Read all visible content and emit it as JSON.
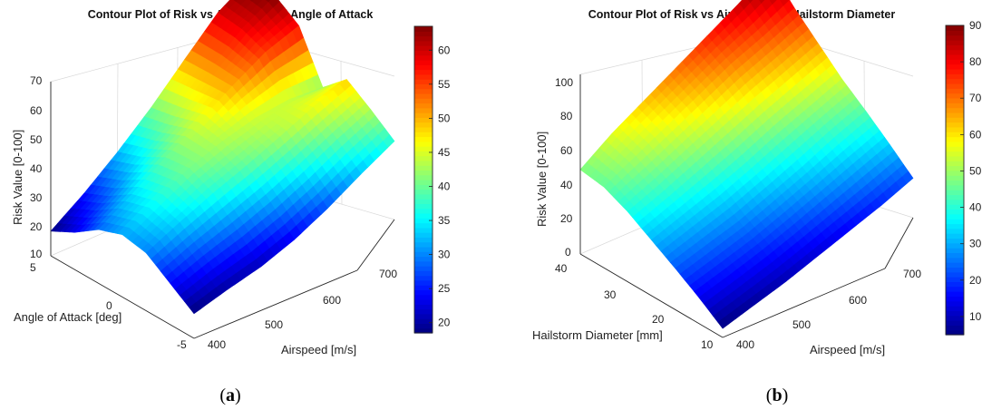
{
  "captions": [
    "a",
    "b"
  ],
  "colors": {
    "colormap": "jet",
    "axis": "#262626",
    "grid": "#d9d9d9"
  },
  "chart_data": [
    {
      "type": "surface",
      "title": "Contour Plot of Risk vs Airspeed and Angle of Attack",
      "xlabel": "Airspeed [m/s]",
      "ylabel": "Angle of Attack [deg]",
      "zlabel": "Risk Value [0-100]",
      "xlim": [
        380,
        720
      ],
      "ylim": [
        -5,
        5
      ],
      "zlim": [
        10,
        70
      ],
      "xticks": [
        "400",
        "500",
        "600",
        "700"
      ],
      "yticks": [
        "5",
        "0",
        "-5"
      ],
      "zticks": [
        "10",
        "20",
        "30",
        "40",
        "50",
        "60",
        "70"
      ],
      "colorbar": {
        "ticks": [
          "20",
          "25",
          "30",
          "35",
          "40",
          "45",
          "50",
          "55",
          "60"
        ],
        "range": [
          18.5,
          63.5
        ]
      },
      "grid": true,
      "x": [
        380,
        437,
        493,
        550,
        607,
        663,
        720
      ],
      "y": [
        -5,
        -3.33,
        -1.67,
        0,
        1.67,
        3.33,
        5
      ],
      "z": [
        [
          18.5,
          20,
          21,
          23.5,
          27.5,
          32.5,
          37
        ],
        [
          24.2,
          26.9,
          28.9,
          31.7,
          35.3,
          39.6,
          43.2
        ],
        [
          29.9,
          33.6,
          36.8,
          39.5,
          42.6,
          46.0,
          48.8
        ],
        [
          31.5,
          36.2,
          40.7,
          43.2,
          44.5,
          44.0,
          41.3
        ],
        [
          28.5,
          33.8,
          39.7,
          44.9,
          50.5,
          55.5,
          57.8
        ],
        [
          22.8,
          28.4,
          35.1,
          42.2,
          50.5,
          58.7,
          63.4
        ],
        [
          18.5,
          24.7,
          32.1,
          40.5,
          50.2,
          59.6,
          65
        ]
      ]
    },
    {
      "type": "surface",
      "title": "Contour Plot of Risk vs Airspeed and Hailstorm Diameter",
      "xlabel": "Airspeed [m/s]",
      "ylabel": "Hailstorm Diameter [mm]",
      "zlabel": "Risk Value [0-100]",
      "xlim": [
        380,
        720
      ],
      "ylim": [
        10,
        40
      ],
      "zlim": [
        0,
        100
      ],
      "xticks": [
        "400",
        "500",
        "600",
        "700"
      ],
      "yticks": [
        "40",
        "30",
        "20",
        "10"
      ],
      "zticks": [
        "0",
        "20",
        "40",
        "60",
        "80",
        "100"
      ],
      "colorbar": {
        "ticks": [
          "10",
          "20",
          "30",
          "40",
          "50",
          "60",
          "70",
          "80",
          "90"
        ],
        "range": [
          5,
          90
        ]
      },
      "grid": true,
      "x": [
        380,
        437,
        493,
        550,
        607,
        663,
        720
      ],
      "y": [
        10,
        15,
        20,
        25,
        30,
        35,
        40
      ],
      "z": [
        [
          5,
          7,
          9,
          12,
          15,
          18,
          22
        ],
        [
          14.5,
          16.3,
          18.6,
          21.9,
          25.8,
          29.6,
          33.3
        ],
        [
          23,
          25,
          27,
          31,
          35,
          40,
          44
        ],
        [
          31,
          34,
          37,
          41,
          46,
          50,
          54
        ],
        [
          39,
          43,
          48,
          53,
          58,
          62,
          66
        ],
        [
          45,
          51,
          57,
          63,
          69,
          73,
          78
        ],
        [
          47,
          56,
          63,
          70,
          77,
          84,
          92
        ]
      ]
    }
  ]
}
